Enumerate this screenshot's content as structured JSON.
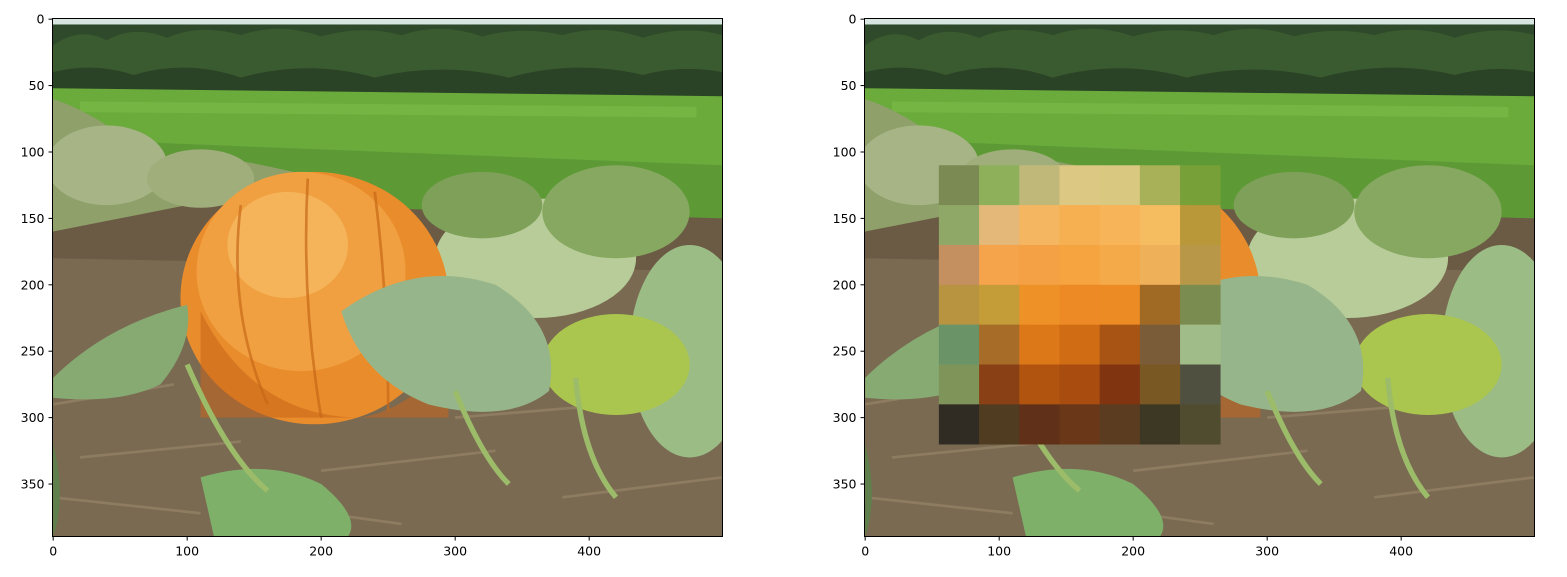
{
  "chart_data": [
    {
      "type": "image",
      "panel": "left",
      "title": "",
      "xlabel": "",
      "ylabel": "",
      "xlim": [
        -0.5,
        499.5
      ],
      "ylim": [
        389.5,
        -0.5
      ],
      "x_ticks": [
        0,
        100,
        200,
        300,
        400
      ],
      "y_ticks": [
        0,
        50,
        100,
        150,
        200,
        250,
        300,
        350
      ],
      "image_content": "pumpkin-field-photo"
    },
    {
      "type": "image",
      "panel": "right",
      "title": "",
      "xlabel": "",
      "ylabel": "",
      "xlim": [
        -0.5,
        499.5
      ],
      "ylim": [
        389.5,
        -0.5
      ],
      "x_ticks": [
        0,
        100,
        200,
        300,
        400
      ],
      "y_ticks": [
        0,
        50,
        100,
        150,
        200,
        250,
        300,
        350
      ],
      "image_content": "pumpkin-field-photo",
      "pixelated_region": {
        "x_range": [
          55,
          265
        ],
        "y_range": [
          110,
          320
        ],
        "block_size": 30,
        "colors": [
          [
            "#7a8a52",
            "#8fb05a",
            "#c0b878",
            "#dcc882",
            "#d8c880",
            "#a8b058",
            "#78a038"
          ],
          [
            "#8fa868",
            "#e4b878",
            "#f4b660",
            "#f6b052",
            "#f8b458",
            "#f6bc60",
            "#b89838"
          ],
          [
            "#c49060",
            "#f6a44c",
            "#f4a044",
            "#f6a440",
            "#f4aa48",
            "#eeb058",
            "#b89848"
          ],
          [
            "#b89440",
            "#c49c38",
            "#ee9228",
            "#ee8a26",
            "#ec8a24",
            "#a06a24",
            "#7a8c50"
          ],
          [
            "#6a9468",
            "#a66c28",
            "#dc7818",
            "#d06c14",
            "#a85414",
            "#7a5c38",
            "#a0bc88"
          ],
          [
            "#7e9458",
            "#884014",
            "#b05410",
            "#a84c10",
            "#803410",
            "#7a5824",
            "#505040"
          ],
          [
            "#302c24",
            "#503c20",
            "#603018",
            "#6a3818",
            "#5c3c20",
            "#3c3824",
            "#504c30"
          ]
        ]
      }
    }
  ]
}
